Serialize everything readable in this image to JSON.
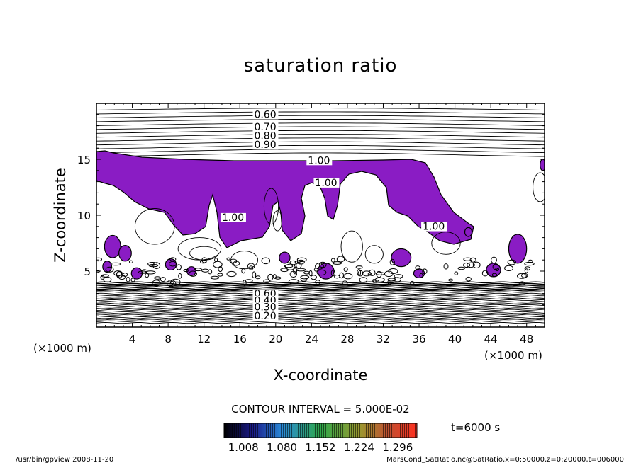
{
  "chart_data": {
    "type": "contour",
    "title": "saturation ratio",
    "xlabel": "X-coordinate",
    "ylabel": "Z-coordinate",
    "x_unit_left": "(×1000 m)",
    "x_unit_right": "(×1000 m)",
    "xlim": [
      0,
      50
    ],
    "ylim": [
      0,
      20
    ],
    "xticks": [
      "4",
      "8",
      "12",
      "16",
      "20",
      "24",
      "28",
      "32",
      "36",
      "40",
      "44",
      "48"
    ],
    "xtick_values": [
      4,
      8,
      12,
      16,
      20,
      24,
      28,
      32,
      36,
      40,
      44,
      48
    ],
    "yticks": [
      "5",
      "10",
      "15"
    ],
    "ytick_values": [
      5,
      10,
      15
    ],
    "contour_labels": [
      {
        "text": "0.60",
        "x": 17.6,
        "z": 18.7
      },
      {
        "text": "0.70",
        "x": 17.6,
        "z": 17.6
      },
      {
        "text": "0.80",
        "x": 17.6,
        "z": 16.8
      },
      {
        "text": "0.90",
        "x": 17.6,
        "z": 16.0
      },
      {
        "text": "1.00",
        "x": 23.6,
        "z": 14.6
      },
      {
        "text": "1.00",
        "x": 24.4,
        "z": 12.6
      },
      {
        "text": "1.00",
        "x": 14.0,
        "z": 9.5
      },
      {
        "text": "1.00",
        "x": 36.4,
        "z": 8.7
      },
      {
        "text": "0.60",
        "x": 17.6,
        "z": 2.7
      },
      {
        "text": "0.40",
        "x": 17.6,
        "z": 2.1
      },
      {
        "text": "0.30",
        "x": 17.6,
        "z": 1.5
      },
      {
        "text": "0.20",
        "x": 17.6,
        "z": 0.7
      }
    ],
    "contour_interval": "CONTOUR INTERVAL = 5.000E-02",
    "shaded_region": "saturation ratio > 1.00 shown in purple",
    "colorbar_ticks": [
      "1.008",
      "1.080",
      "1.152",
      "1.224",
      "1.296"
    ],
    "colorbar_values": [
      1.008,
      1.08,
      1.152,
      1.224,
      1.296
    ],
    "colorbar_range": [
      0.972,
      1.332
    ],
    "colors": {
      "supersat": "#8a1cc4",
      "colorbar_low": "#000000",
      "colorbar_mid": "#2ea84a",
      "colorbar_high": "#ff3020"
    },
    "time_label": "t=6000 s",
    "footer_left": "/usr/bin/gpview   2008-11-20",
    "footer_right": "MarsCond_SatRatio.nc@SatRatio,x=0:50000,z=0:20000,t=006000"
  }
}
